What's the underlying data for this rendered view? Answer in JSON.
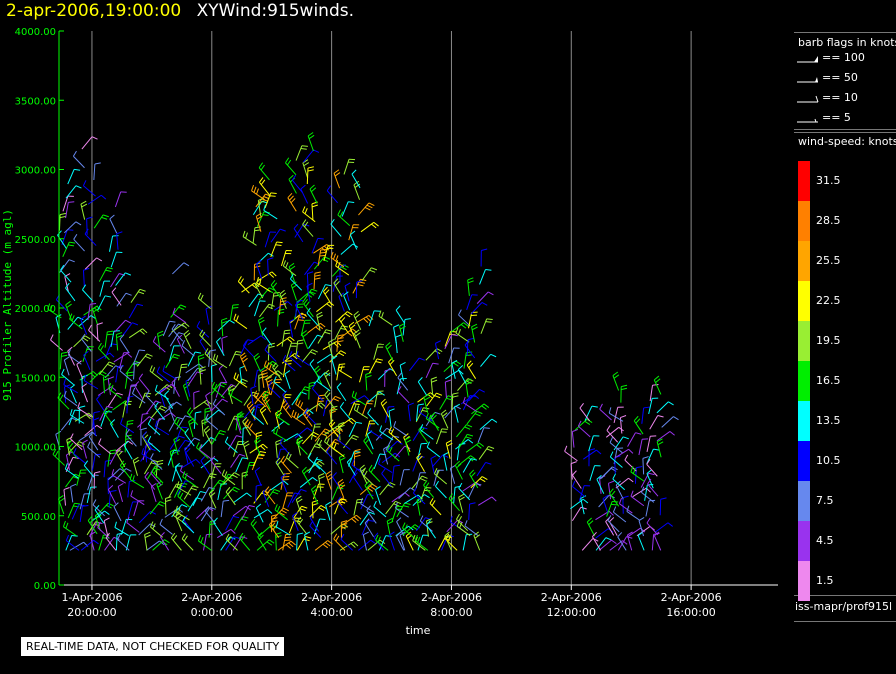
{
  "header": {
    "timestamp": "2-apr-2006,19:00:00",
    "name": "XYWind:915winds."
  },
  "chart_data": {
    "type": "scatter",
    "title": "2-apr-2006,19:00:00 XYWind:915winds.",
    "xlabel": "time",
    "ylabel": "915 Profiler Altitude (m agl)",
    "ylim": [
      0,
      4000
    ],
    "yticks": [
      "0.00",
      "500.00",
      "1000.00",
      "1500.00",
      "2000.00",
      "2500.00",
      "3000.00",
      "3500.00",
      "4000.00"
    ],
    "xticks": [
      {
        "date": "1-Apr-2006",
        "time": "20:00:00"
      },
      {
        "date": "2-Apr-2006",
        "time": "0:00:00"
      },
      {
        "date": "2-Apr-2006",
        "time": "4:00:00"
      },
      {
        "date": "2-Apr-2006",
        "time": "8:00:00"
      },
      {
        "date": "2-Apr-2006",
        "time": "12:00:00"
      },
      {
        "date": "2-Apr-2006",
        "time": "16:00:00"
      }
    ],
    "xlim_hours": [
      -1.1,
      22.9
    ],
    "grid": "vertical",
    "profile_hours": [
      0,
      4,
      8,
      12,
      16
    ],
    "barb_legend": {
      "title": "barb flags in knots",
      "entries": [
        "== 100",
        "== 50",
        "== 10",
        "== 5"
      ]
    },
    "speed_legend": {
      "title": "wind-speed: knots",
      "levels": [
        {
          "label": "31.5",
          "color": "#ff0000"
        },
        {
          "label": "28.5",
          "color": "#ff8000"
        },
        {
          "label": "25.5",
          "color": "#ffa500"
        },
        {
          "label": "22.5",
          "color": "#ffff00"
        },
        {
          "label": "19.5",
          "color": "#99ee33"
        },
        {
          "label": "16.5",
          "color": "#00ee00"
        },
        {
          "label": "13.5",
          "color": "#00ffff"
        },
        {
          "label": "10.5",
          "color": "#0000ff"
        },
        {
          "label": "7.5",
          "color": "#6688ee"
        },
        {
          "label": "4.5",
          "color": "#9933ee"
        },
        {
          "label": "1.5",
          "color": "#ee88ee"
        }
      ]
    },
    "barb_clusters": [
      {
        "hour_start": -1.1,
        "hour_end": 1.0,
        "alt_min": 250,
        "alt_max": 3300,
        "speed": 10
      },
      {
        "hour_start": 1.0,
        "hour_end": 5.0,
        "alt_min": 250,
        "alt_max": 2550,
        "speed": 12
      },
      {
        "hour_start": 5.0,
        "hour_end": 9.0,
        "alt_min": 250,
        "alt_max": 3200,
        "speed": 18
      },
      {
        "hour_start": 9.0,
        "hour_end": 13.0,
        "alt_min": 250,
        "alt_max": 2400,
        "speed": 14
      },
      {
        "hour_start": 16.0,
        "hour_end": 19.0,
        "alt_min": 250,
        "alt_max": 1450,
        "speed": 8
      }
    ]
  },
  "source_label": "iss-mapr/prof915l",
  "notice": "REAL-TIME DATA, NOT CHECKED FOR QUALITY"
}
